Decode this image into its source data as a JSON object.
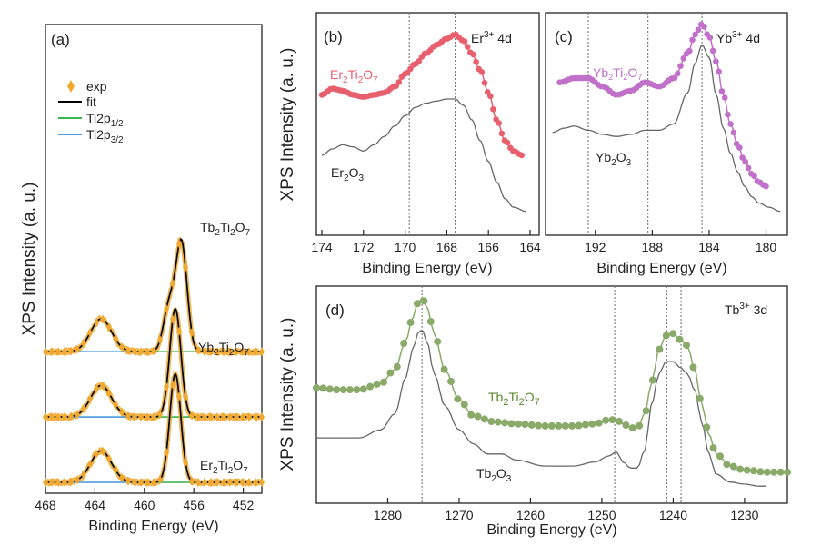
{
  "colors": {
    "exp_a": "#f0a830",
    "fit": "#000000",
    "ti12": "#3cb850",
    "ti32": "#4a9ee0",
    "bg": "#a08a8a",
    "er": "#e8606e",
    "yb": "#c070c8",
    "tb": "#8aaa6a",
    "ref": "#666666",
    "guide": "#777777"
  },
  "chart_data": [
    {
      "panel": "(a)",
      "type": "line",
      "xlabel": "Binding Energy (eV)",
      "ylabel": "XPS Intensity (a. u.)",
      "xlim": [
        468,
        450.5
      ],
      "ylim": [
        0,
        3.05
      ],
      "x_ticks": [
        468,
        464,
        460,
        456,
        452
      ],
      "legend": [
        {
          "label": "exp",
          "kind": "diamond",
          "color_key": "exp_a"
        },
        {
          "label": "fit",
          "kind": "line",
          "color_key": "fit"
        },
        {
          "label": "Ti2p1/2",
          "kind": "line",
          "color_key": "ti12"
        },
        {
          "label": "Ti2p3/2",
          "kind": "line",
          "color_key": "ti32"
        }
      ],
      "legend_location": "upper-left",
      "peaks": {
        "ti12_center": 463.5,
        "ti12_width": 0.85,
        "ti32_center_base": 457.5,
        "ti32_width": 0.45,
        "ti32_center_shift_top": 457.0
      },
      "series": [
        {
          "name": "Tb2Ti2O7",
          "offset": 2.0,
          "ti12_height": 0.52,
          "ti32_height": 1.72,
          "second_peak_center": 458.0,
          "second_peak_height": 0.72
        },
        {
          "name": "Yb2Ti2O7",
          "offset": 1.0,
          "ti12_height": 0.5,
          "ti32_height": 1.72,
          "second_peak_center": 458.0,
          "second_peak_height": 0.0
        },
        {
          "name": "Er2Ti2O7",
          "offset": 0.0,
          "ti12_height": 0.5,
          "ti32_height": 1.72,
          "second_peak_center": 458.0,
          "second_peak_height": 0.0
        }
      ]
    },
    {
      "panel": "(b)",
      "type": "line",
      "title": "Er3+ 4d",
      "xlabel": "Binding Energy (eV)",
      "ylabel": "XPS Intensity (a. u.)",
      "xlim": [
        174,
        164
      ],
      "ylim": [
        0,
        1.0
      ],
      "x_ticks": [
        174,
        172,
        170,
        168,
        166,
        164
      ],
      "guides": [
        169.8,
        167.6
      ],
      "series": [
        {
          "name": "Er2Ti2O7",
          "marker": "circle",
          "color_key": "er",
          "x": [
            174,
            173.5,
            173,
            172.5,
            172,
            171.5,
            171,
            170.5,
            170,
            169.5,
            169,
            168.5,
            168,
            167.6,
            167.2,
            166.8,
            166.4,
            166,
            165.6,
            165.2,
            164.8,
            164.4
          ],
          "y": [
            0.64,
            0.67,
            0.66,
            0.64,
            0.63,
            0.64,
            0.65,
            0.68,
            0.74,
            0.79,
            0.84,
            0.88,
            0.91,
            0.93,
            0.9,
            0.84,
            0.76,
            0.65,
            0.52,
            0.42,
            0.37,
            0.35
          ]
        },
        {
          "name": "Er2O3",
          "marker": "line",
          "color_key": "ref",
          "x": [
            174,
            173.5,
            173,
            172.5,
            172,
            171.5,
            171,
            170.5,
            170,
            169.5,
            169,
            168.5,
            168,
            167.6,
            167.2,
            166.8,
            166.4,
            166,
            165.6,
            165.2,
            164.8,
            164.2
          ],
          "y": [
            0.35,
            0.38,
            0.4,
            0.39,
            0.37,
            0.4,
            0.44,
            0.49,
            0.54,
            0.58,
            0.6,
            0.61,
            0.62,
            0.62,
            0.59,
            0.52,
            0.42,
            0.32,
            0.22,
            0.14,
            0.1,
            0.08
          ]
        }
      ],
      "labels": {
        "sample": "Er2Ti2O7",
        "reference": "Er2O3"
      }
    },
    {
      "panel": "(c)",
      "type": "line",
      "title": "Yb3+ 4d",
      "xlabel": "Binding Energy (eV)",
      "ylabel": "",
      "xlim": [
        195.5,
        178.5
      ],
      "ylim": [
        0,
        1.0
      ],
      "x_ticks": [
        192,
        188,
        184,
        180
      ],
      "guides": [
        192.5,
        188.3,
        184.5
      ],
      "series": [
        {
          "name": "Yb2Ti2O7",
          "marker": "circle",
          "color_key": "yb",
          "x": [
            194.5,
            193.5,
            192.5,
            191.5,
            190.5,
            189.5,
            188.5,
            187.5,
            186.5,
            185.5,
            185,
            184.5,
            184,
            183.5,
            183,
            182.5,
            182,
            181.5,
            181,
            180.5,
            180
          ],
          "y": [
            0.7,
            0.72,
            0.72,
            0.68,
            0.64,
            0.66,
            0.7,
            0.68,
            0.72,
            0.84,
            0.93,
            0.98,
            0.92,
            0.8,
            0.64,
            0.5,
            0.4,
            0.32,
            0.26,
            0.22,
            0.2
          ]
        },
        {
          "name": "Yb2O3",
          "marker": "line",
          "color_key": "ref",
          "x": [
            195,
            194.2,
            193.5,
            192.5,
            191.5,
            190.5,
            189.5,
            188.5,
            187.5,
            186.5,
            185.5,
            185,
            184.5,
            184,
            183.5,
            183,
            182.5,
            182,
            181.5,
            181,
            180.5,
            179.8,
            179
          ],
          "y": [
            0.46,
            0.48,
            0.49,
            0.47,
            0.45,
            0.44,
            0.45,
            0.47,
            0.47,
            0.5,
            0.65,
            0.79,
            0.88,
            0.82,
            0.64,
            0.48,
            0.36,
            0.27,
            0.2,
            0.15,
            0.12,
            0.1,
            0.08
          ]
        }
      ],
      "labels": {
        "sample": "Yb2Ti2O7",
        "reference": "Yb2O3"
      }
    },
    {
      "panel": "(d)",
      "type": "line",
      "title": "Tb3+ 3d",
      "xlabel": "Binding Energy (eV)",
      "ylabel": "XPS Intensity (a. u.)",
      "xlim": [
        1290,
        1224
      ],
      "ylim": [
        0,
        1.0
      ],
      "x_ticks": [
        1280,
        1270,
        1260,
        1250,
        1240,
        1230
      ],
      "guides": [
        1275.2,
        1248.2,
        1240.9,
        1238.9
      ],
      "series": [
        {
          "name": "Tb2Ti2O7",
          "marker": "circle",
          "color_key": "tb",
          "x": [
            1290,
            1287,
            1284,
            1281,
            1279,
            1277.5,
            1276.5,
            1275.8,
            1275.2,
            1274.5,
            1273.5,
            1272,
            1270,
            1268,
            1265,
            1262,
            1258,
            1254,
            1251,
            1249,
            1248,
            1247,
            1246,
            1245,
            1244,
            1243,
            1242,
            1241,
            1240,
            1239,
            1238,
            1237,
            1236,
            1235,
            1234,
            1232,
            1230,
            1227,
            1224
          ],
          "y": [
            0.53,
            0.52,
            0.52,
            0.55,
            0.62,
            0.76,
            0.88,
            0.95,
            0.98,
            0.93,
            0.8,
            0.62,
            0.47,
            0.39,
            0.36,
            0.35,
            0.34,
            0.34,
            0.35,
            0.37,
            0.37,
            0.35,
            0.33,
            0.33,
            0.4,
            0.56,
            0.72,
            0.79,
            0.8,
            0.77,
            0.74,
            0.62,
            0.45,
            0.3,
            0.2,
            0.14,
            0.12,
            0.11,
            0.11
          ]
        },
        {
          "name": "Tb2O3",
          "marker": "line",
          "color_key": "ref",
          "x": [
            1290,
            1287,
            1284,
            1281,
            1279,
            1277.5,
            1276.5,
            1275.8,
            1275.2,
            1274.5,
            1273.5,
            1272,
            1270,
            1268,
            1266,
            1264,
            1262,
            1258,
            1254,
            1251,
            1249,
            1248,
            1247,
            1246,
            1245,
            1244,
            1243,
            1242,
            1241,
            1240,
            1239,
            1238,
            1237,
            1236,
            1235,
            1234,
            1232,
            1230,
            1228,
            1227
          ],
          "y": [
            0.28,
            0.28,
            0.28,
            0.32,
            0.4,
            0.58,
            0.72,
            0.8,
            0.82,
            0.76,
            0.6,
            0.44,
            0.32,
            0.25,
            0.2,
            0.2,
            0.17,
            0.14,
            0.14,
            0.16,
            0.19,
            0.21,
            0.16,
            0.13,
            0.13,
            0.22,
            0.45,
            0.6,
            0.66,
            0.66,
            0.63,
            0.6,
            0.52,
            0.36,
            0.2,
            0.1,
            0.06,
            0.05,
            0.04,
            0.04
          ]
        }
      ],
      "labels": {
        "sample": "Tb2Ti2O7",
        "reference": "Tb2O3"
      }
    }
  ]
}
